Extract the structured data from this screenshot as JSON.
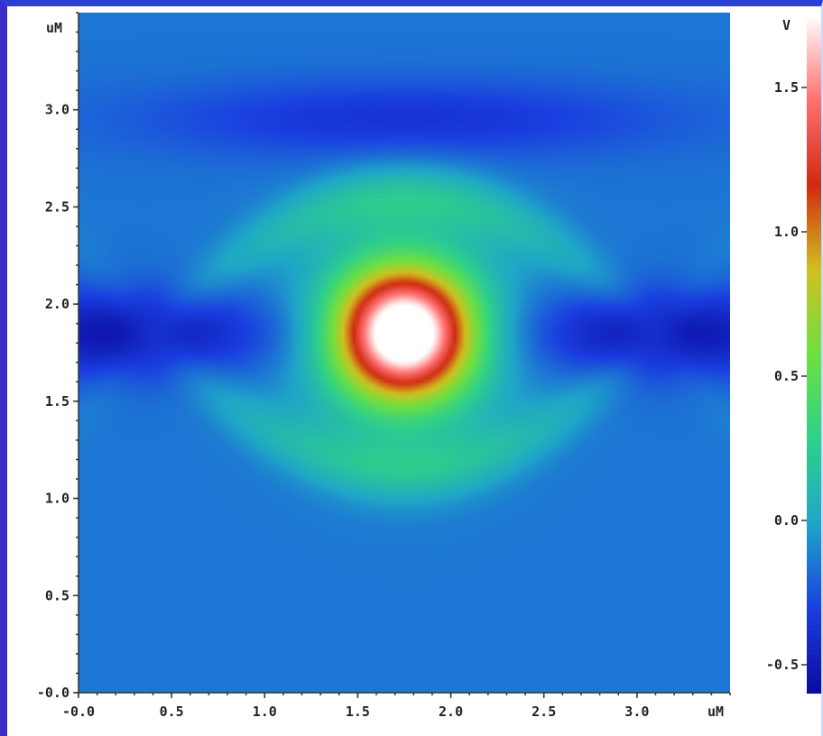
{
  "chart_data": {
    "type": "heatmap",
    "x_unit": "uM",
    "y_unit": "uM",
    "xlim": [
      0.0,
      3.5
    ],
    "ylim": [
      0.0,
      3.5
    ],
    "x_ticks": [
      "-0.0",
      "0.5",
      "1.0",
      "1.5",
      "2.0",
      "2.5",
      "3.0"
    ],
    "y_ticks": [
      "-0.0",
      "0.5",
      "1.0",
      "1.5",
      "2.0",
      "2.5",
      "3.0"
    ],
    "x_tick_values": [
      0.0,
      0.5,
      1.0,
      1.5,
      2.0,
      2.5,
      3.0
    ],
    "y_tick_values": [
      0.0,
      0.5,
      1.0,
      1.5,
      2.0,
      2.5,
      3.0
    ],
    "colorbar": {
      "unit": "V",
      "range": [
        -0.6,
        1.75
      ],
      "ticks": [
        "-0.5",
        "0.0",
        "0.5",
        "1.0",
        "1.5"
      ],
      "tick_values": [
        -0.5,
        0.0,
        0.5,
        1.0,
        1.5
      ],
      "colors": [
        "#0b0aa0",
        "#1a3fe0",
        "#1fa6c8",
        "#2fd08a",
        "#6ee040",
        "#d0c020",
        "#d02a10",
        "#ff7070",
        "#ffffff"
      ]
    },
    "grid": "x: 0.0–3.5 uM, y: 0.0–3.5 uM",
    "features": [
      {
        "kind": "peak",
        "x": 1.75,
        "y": 1.85,
        "value": 1.7
      },
      {
        "kind": "trough-band",
        "y": 1.85,
        "value": -0.55
      },
      {
        "kind": "upper-arc",
        "y": 2.55,
        "value": 0.15
      },
      {
        "kind": "lower-arc",
        "y": 1.15,
        "value": 0.15
      },
      {
        "kind": "background",
        "value": -0.15
      }
    ]
  }
}
